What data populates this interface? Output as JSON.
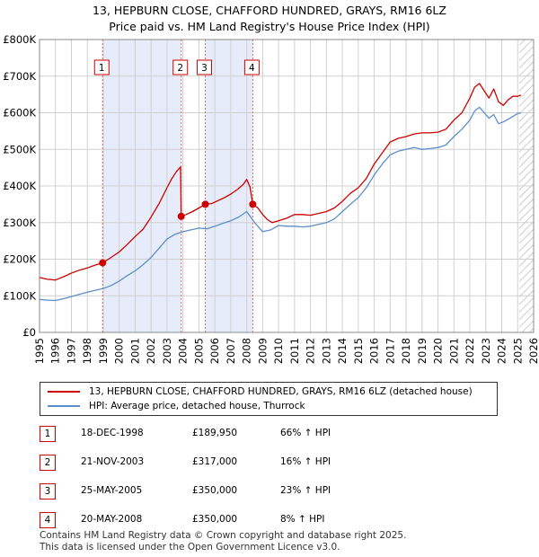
{
  "chart_data": {
    "type": "line",
    "title": "13, HEPBURN CLOSE, CHAFFORD HUNDRED, GRAYS, RM16 6LZ",
    "subtitle": "Price paid vs. HM Land Registry's House Price Index (HPI)",
    "xlabel": "",
    "ylabel": "",
    "xlim": [
      1995,
      2026
    ],
    "ylim": [
      0,
      800000
    ],
    "y_ticks": [
      {
        "value": 0,
        "label": "£0"
      },
      {
        "value": 100000,
        "label": "£100K"
      },
      {
        "value": 200000,
        "label": "£200K"
      },
      {
        "value": 300000,
        "label": "£300K"
      },
      {
        "value": 400000,
        "label": "£400K"
      },
      {
        "value": 500000,
        "label": "£500K"
      },
      {
        "value": 600000,
        "label": "£600K"
      },
      {
        "value": 700000,
        "label": "£700K"
      },
      {
        "value": 800000,
        "label": "£800K"
      }
    ],
    "x_ticks": [
      "1995",
      "1996",
      "1997",
      "1998",
      "1999",
      "2000",
      "2001",
      "2002",
      "2003",
      "2004",
      "2005",
      "2006",
      "2007",
      "2008",
      "2009",
      "2010",
      "2011",
      "2012",
      "2013",
      "2014",
      "2015",
      "2016",
      "2017",
      "2018",
      "2019",
      "2020",
      "2021",
      "2022",
      "2023",
      "2024",
      "2025",
      "2026"
    ],
    "grid": true,
    "legend_position": "below-chart",
    "shaded_ranges": [
      [
        1998.96,
        2003.89
      ],
      [
        2005.4,
        2008.38
      ]
    ],
    "forecast_start": 2025.1,
    "series": [
      {
        "name": "13, HEPBURN CLOSE, CHAFFORD HUNDRED, GRAYS, RM16 6LZ (detached house)",
        "color": "#cc0000",
        "x": [
          1995,
          1995.5,
          1996,
          1996.5,
          1997,
          1997.5,
          1998,
          1998.5,
          1998.96,
          1999.5,
          2000,
          2000.5,
          2001,
          2001.5,
          2002,
          2002.5,
          2003,
          2003.3,
          2003.6,
          2003.85,
          2003.89,
          2004.2,
          2004.6,
          2005,
          2005.4,
          2005.8,
          2006.2,
          2006.6,
          2007,
          2007.4,
          2007.8,
          2008,
          2008.2,
          2008.38,
          2008.7,
          2009,
          2009.3,
          2009.6,
          2010,
          2010.5,
          2011,
          2011.5,
          2012,
          2012.5,
          2013,
          2013.5,
          2014,
          2014.5,
          2015,
          2015.5,
          2016,
          2016.5,
          2017,
          2017.5,
          2018,
          2018.5,
          2019,
          2019.5,
          2020,
          2020.5,
          2021,
          2021.5,
          2022,
          2022.3,
          2022.6,
          2022.9,
          2023.2,
          2023.5,
          2023.8,
          2024.1,
          2024.4,
          2024.7,
          2025,
          2025.2
        ],
        "values": [
          150000,
          145000,
          143000,
          152000,
          162000,
          170000,
          176000,
          184000,
          189950,
          205000,
          220000,
          240000,
          262000,
          282000,
          315000,
          352000,
          395000,
          420000,
          440000,
          452000,
          317000,
          322000,
          330000,
          340000,
          350000,
          352000,
          360000,
          368000,
          378000,
          390000,
          405000,
          418000,
          398000,
          350000,
          340000,
          322000,
          308000,
          300000,
          305000,
          312000,
          322000,
          322000,
          320000,
          325000,
          330000,
          340000,
          358000,
          380000,
          395000,
          420000,
          460000,
          490000,
          520000,
          530000,
          535000,
          542000,
          545000,
          545000,
          547000,
          555000,
          580000,
          600000,
          640000,
          670000,
          680000,
          660000,
          640000,
          665000,
          630000,
          620000,
          635000,
          645000,
          645000,
          648000
        ]
      },
      {
        "name": "HPI: Average price, detached house, Thurrock",
        "color": "#5b8ec9",
        "x": [
          1995,
          1995.5,
          1996,
          1996.5,
          1997,
          1997.5,
          1998,
          1998.5,
          1999,
          1999.5,
          2000,
          2000.5,
          2001,
          2001.5,
          2002,
          2002.5,
          2003,
          2003.5,
          2004,
          2004.5,
          2005,
          2005.5,
          2006,
          2006.5,
          2007,
          2007.5,
          2008,
          2008.5,
          2009,
          2009.5,
          2010,
          2010.5,
          2011,
          2011.5,
          2012,
          2012.5,
          2013,
          2013.5,
          2014,
          2014.5,
          2015,
          2015.5,
          2016,
          2016.5,
          2017,
          2017.5,
          2018,
          2018.5,
          2019,
          2019.5,
          2020,
          2020.5,
          2021,
          2021.5,
          2022,
          2022.3,
          2022.6,
          2022.9,
          2023.2,
          2023.5,
          2023.8,
          2024.1,
          2024.4,
          2024.7,
          2025,
          2025.2
        ],
        "values": [
          90000,
          88000,
          87000,
          92000,
          98000,
          104000,
          110000,
          115000,
          120000,
          128000,
          140000,
          155000,
          168000,
          185000,
          205000,
          230000,
          255000,
          268000,
          275000,
          280000,
          285000,
          283000,
          290000,
          298000,
          305000,
          315000,
          330000,
          300000,
          275000,
          280000,
          292000,
          290000,
          290000,
          288000,
          290000,
          295000,
          300000,
          310000,
          330000,
          350000,
          368000,
          395000,
          430000,
          460000,
          485000,
          495000,
          500000,
          505000,
          500000,
          502000,
          505000,
          512000,
          535000,
          555000,
          580000,
          605000,
          615000,
          600000,
          585000,
          595000,
          570000,
          575000,
          582000,
          590000,
          598000,
          600000
        ]
      }
    ],
    "transactions": [
      {
        "num": "1",
        "date": "18-DEC-1998",
        "price": "£189,950",
        "hpi": "66% ↑ HPI",
        "x": 1998.96,
        "y": 189950
      },
      {
        "num": "2",
        "date": "21-NOV-2003",
        "price": "£317,000",
        "hpi": "16% ↑ HPI",
        "x": 2003.89,
        "y": 317000
      },
      {
        "num": "3",
        "date": "25-MAY-2005",
        "price": "£350,000",
        "hpi": "23% ↑ HPI",
        "x": 2005.4,
        "y": 350000
      },
      {
        "num": "4",
        "date": "20-MAY-2008",
        "price": "£350,000",
        "hpi": "8% ↑ HPI",
        "x": 2008.38,
        "y": 350000
      }
    ]
  },
  "footer": {
    "line1": "Contains HM Land Registry data © Crown copyright and database right 2025.",
    "line2": "This data is licensed under the Open Government Licence v3.0."
  }
}
